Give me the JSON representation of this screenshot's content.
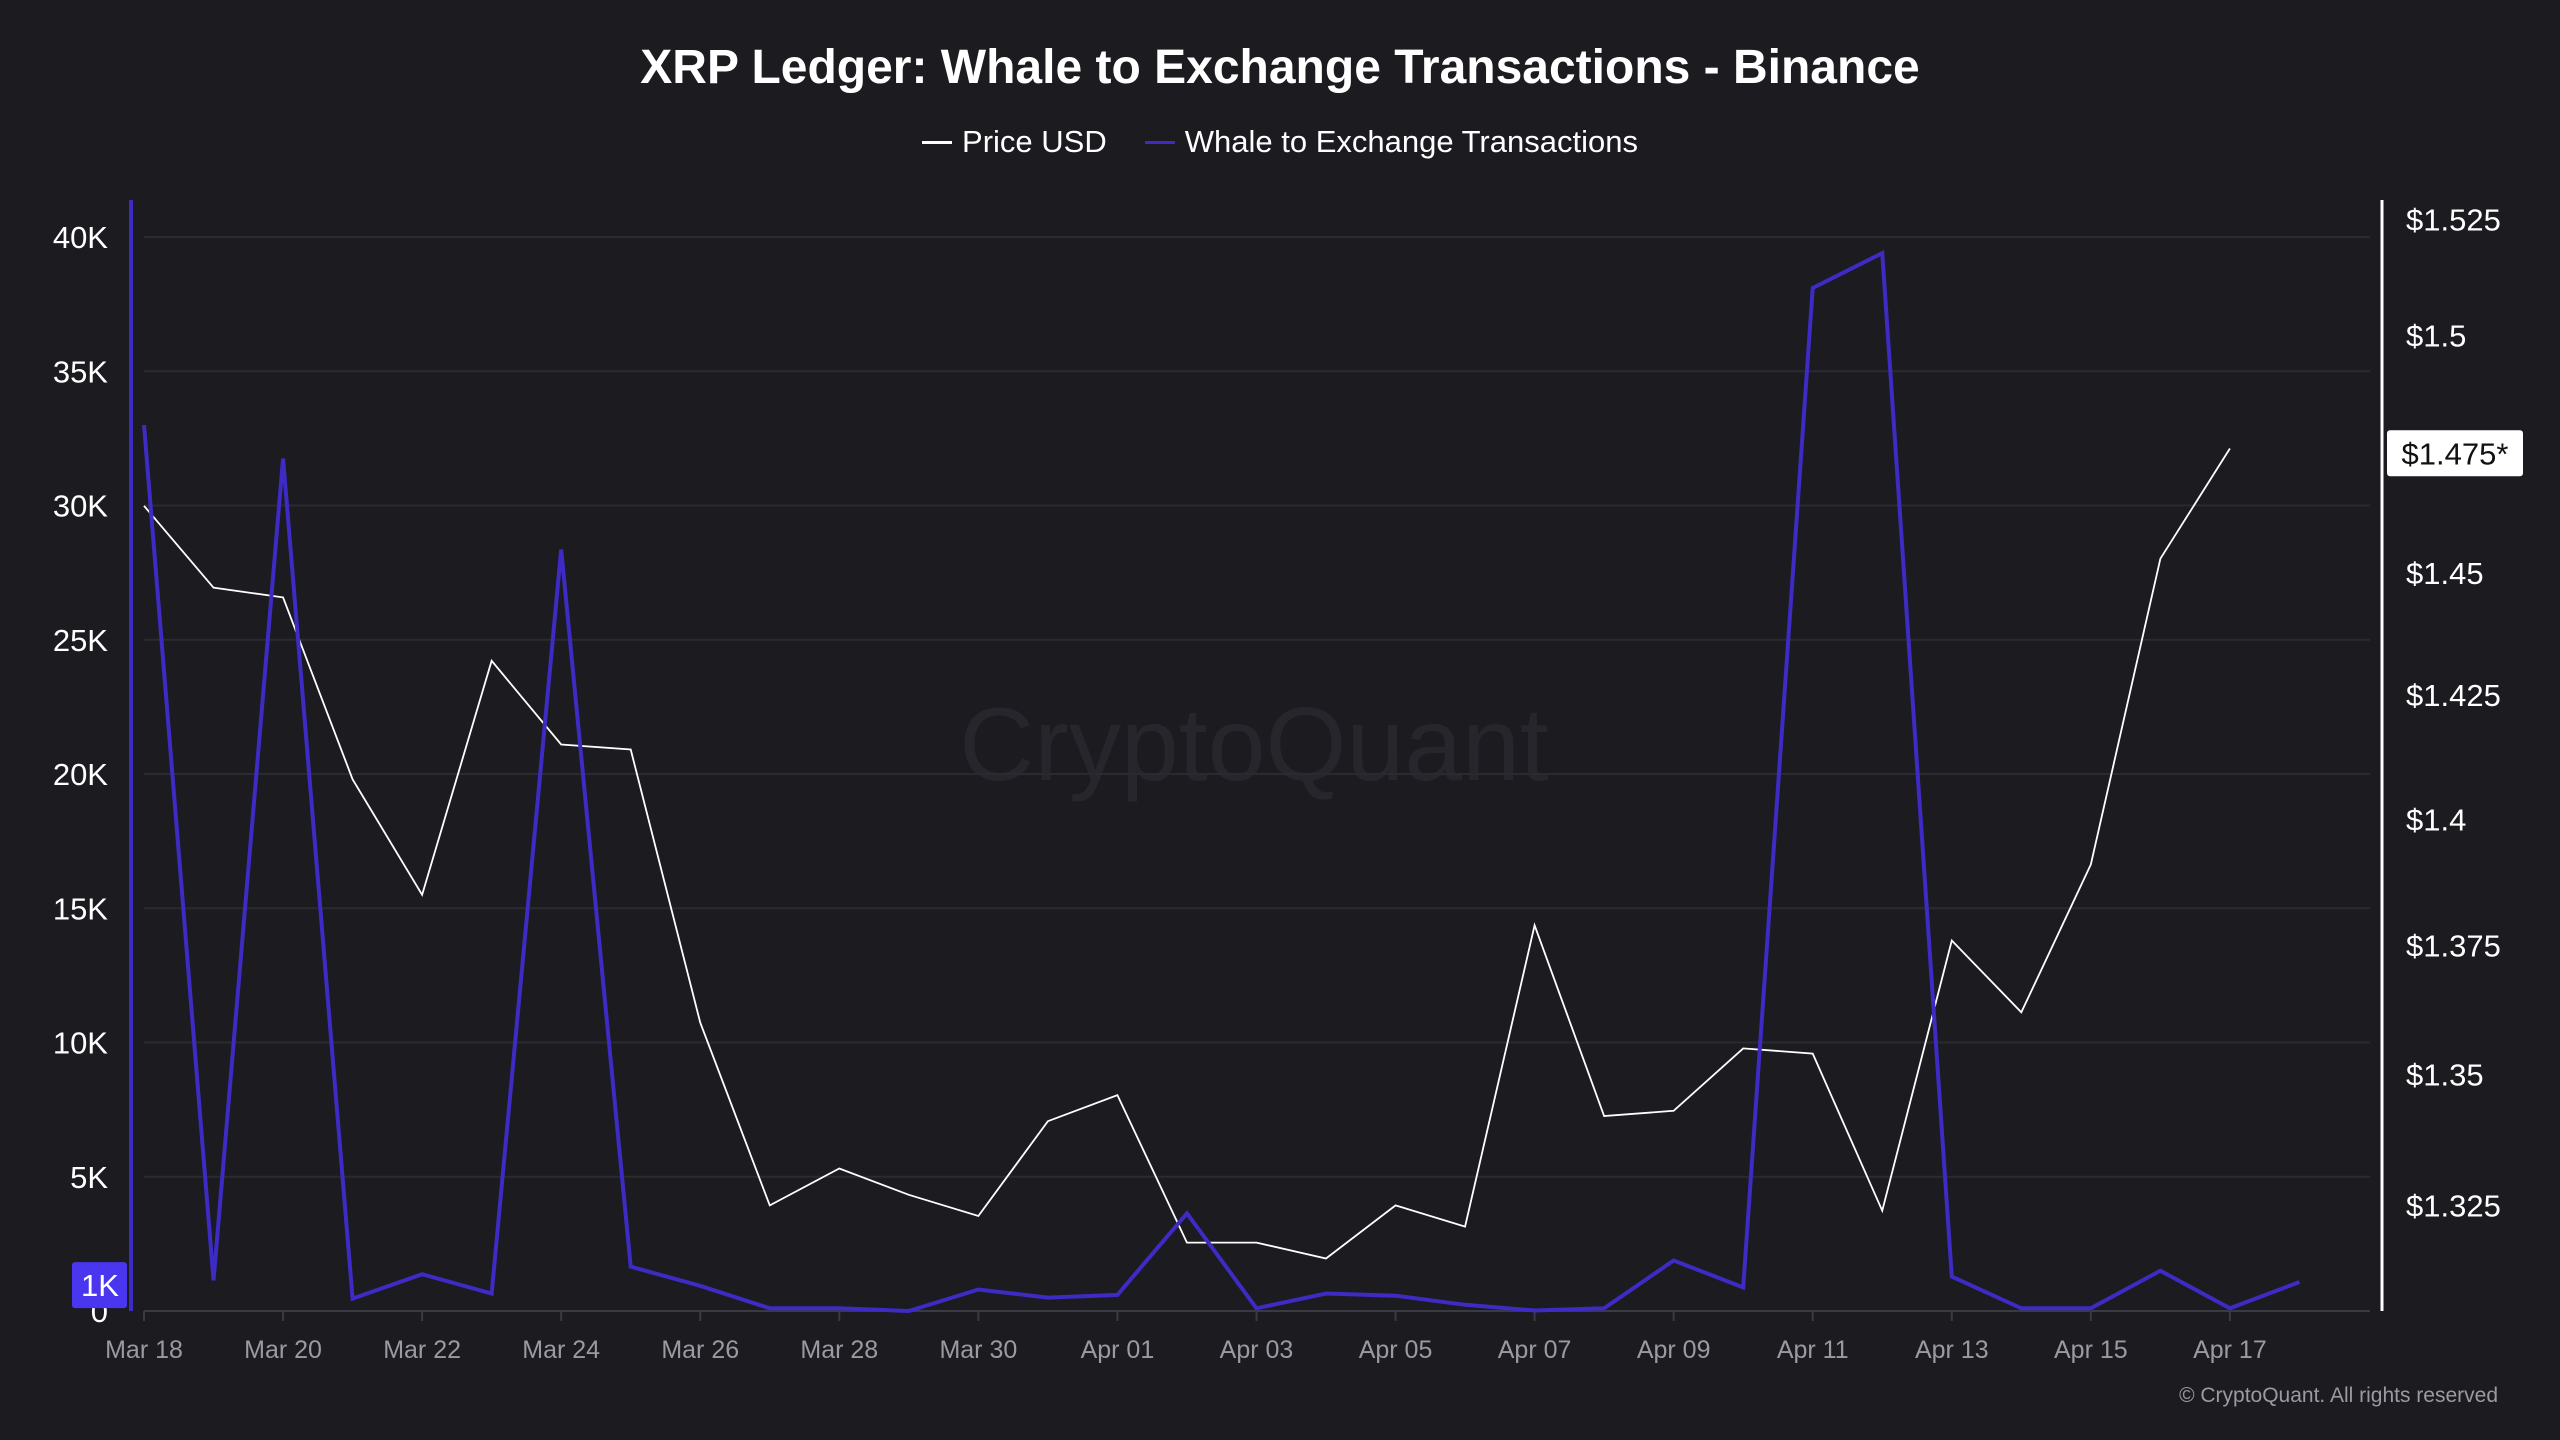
{
  "chart_data": {
    "type": "line",
    "title": "XRP Ledger: Whale to Exchange Transactions - Binance",
    "watermark": "CryptoQuant",
    "copyright": "© CryptoQuant. All rights reserved",
    "x": [
      "Mar 18",
      "Mar 19",
      "Mar 20",
      "Mar 21",
      "Mar 22",
      "Mar 23",
      "Mar 24",
      "Mar 25",
      "Mar 26",
      "Mar 27",
      "Mar 28",
      "Mar 29",
      "Mar 30",
      "Mar 31",
      "Apr 01",
      "Apr 02",
      "Apr 03",
      "Apr 04",
      "Apr 05",
      "Apr 06",
      "Apr 07",
      "Apr 08",
      "Apr 09",
      "Apr 10",
      "Apr 11",
      "Apr 12",
      "Apr 13",
      "Apr 14",
      "Apr 15",
      "Apr 16",
      "Apr 17",
      "Apr 18"
    ],
    "x_tick_labels": [
      "Mar 18",
      "Mar 20",
      "Mar 22",
      "Mar 24",
      "Mar 26",
      "Mar 28",
      "Mar 30",
      "Apr 01",
      "Apr 03",
      "Apr 05",
      "Apr 07",
      "Apr 09",
      "Apr 11",
      "Apr 13",
      "Apr 15",
      "Apr 17"
    ],
    "series": [
      {
        "name": "Price USD",
        "axis": "right",
        "color": "#ffffff",
        "values": [
          1.464,
          1.447,
          1.445,
          1.408,
          1.385,
          1.432,
          1.415,
          1.414,
          1.36,
          1.325,
          1.332,
          1.327,
          1.323,
          1.341,
          1.346,
          1.318,
          1.318,
          1.315,
          1.325,
          1.321,
          1.379,
          1.342,
          1.343,
          1.355,
          1.354,
          1.324,
          1.376,
          1.362,
          1.391,
          1.453,
          1.476,
          null
        ]
      },
      {
        "name": "Whale to Exchange Transactions",
        "axis": "left",
        "color": "#3d2bc4",
        "values": [
          33000,
          1140,
          31750,
          460,
          1370,
          650,
          28360,
          1650,
          940,
          100,
          100,
          0,
          800,
          500,
          600,
          3640,
          100,
          650,
          570,
          230,
          20,
          100,
          1880,
          880,
          38100,
          39400,
          1280,
          100,
          100,
          1500,
          100,
          1080
        ]
      }
    ],
    "left_axis": {
      "ticks": [
        "0",
        "5K",
        "10K",
        "15K",
        "20K",
        "25K",
        "30K",
        "35K",
        "40K"
      ],
      "tick_values": [
        0,
        5000,
        10000,
        15000,
        20000,
        25000,
        30000,
        35000,
        40000
      ],
      "ylim": [
        0,
        40000
      ],
      "marker_label": "1K",
      "marker_value": 1000,
      "color": "#3d2bc4"
    },
    "right_axis": {
      "ticks": [
        "$1.325",
        "$1.35",
        "$1.375",
        "$1.4",
        "$1.425",
        "$1.45",
        "$1.5",
        "$1.525"
      ],
      "tick_values": [
        1.325,
        1.35,
        1.375,
        1.4,
        1.425,
        1.45,
        1.5,
        1.525
      ],
      "ylim": [
        1.3052,
        1.5212
      ],
      "scale": "log",
      "current_label": "$1.475*",
      "current_value": 1.475
    },
    "grid": true,
    "legend": "top-center"
  }
}
